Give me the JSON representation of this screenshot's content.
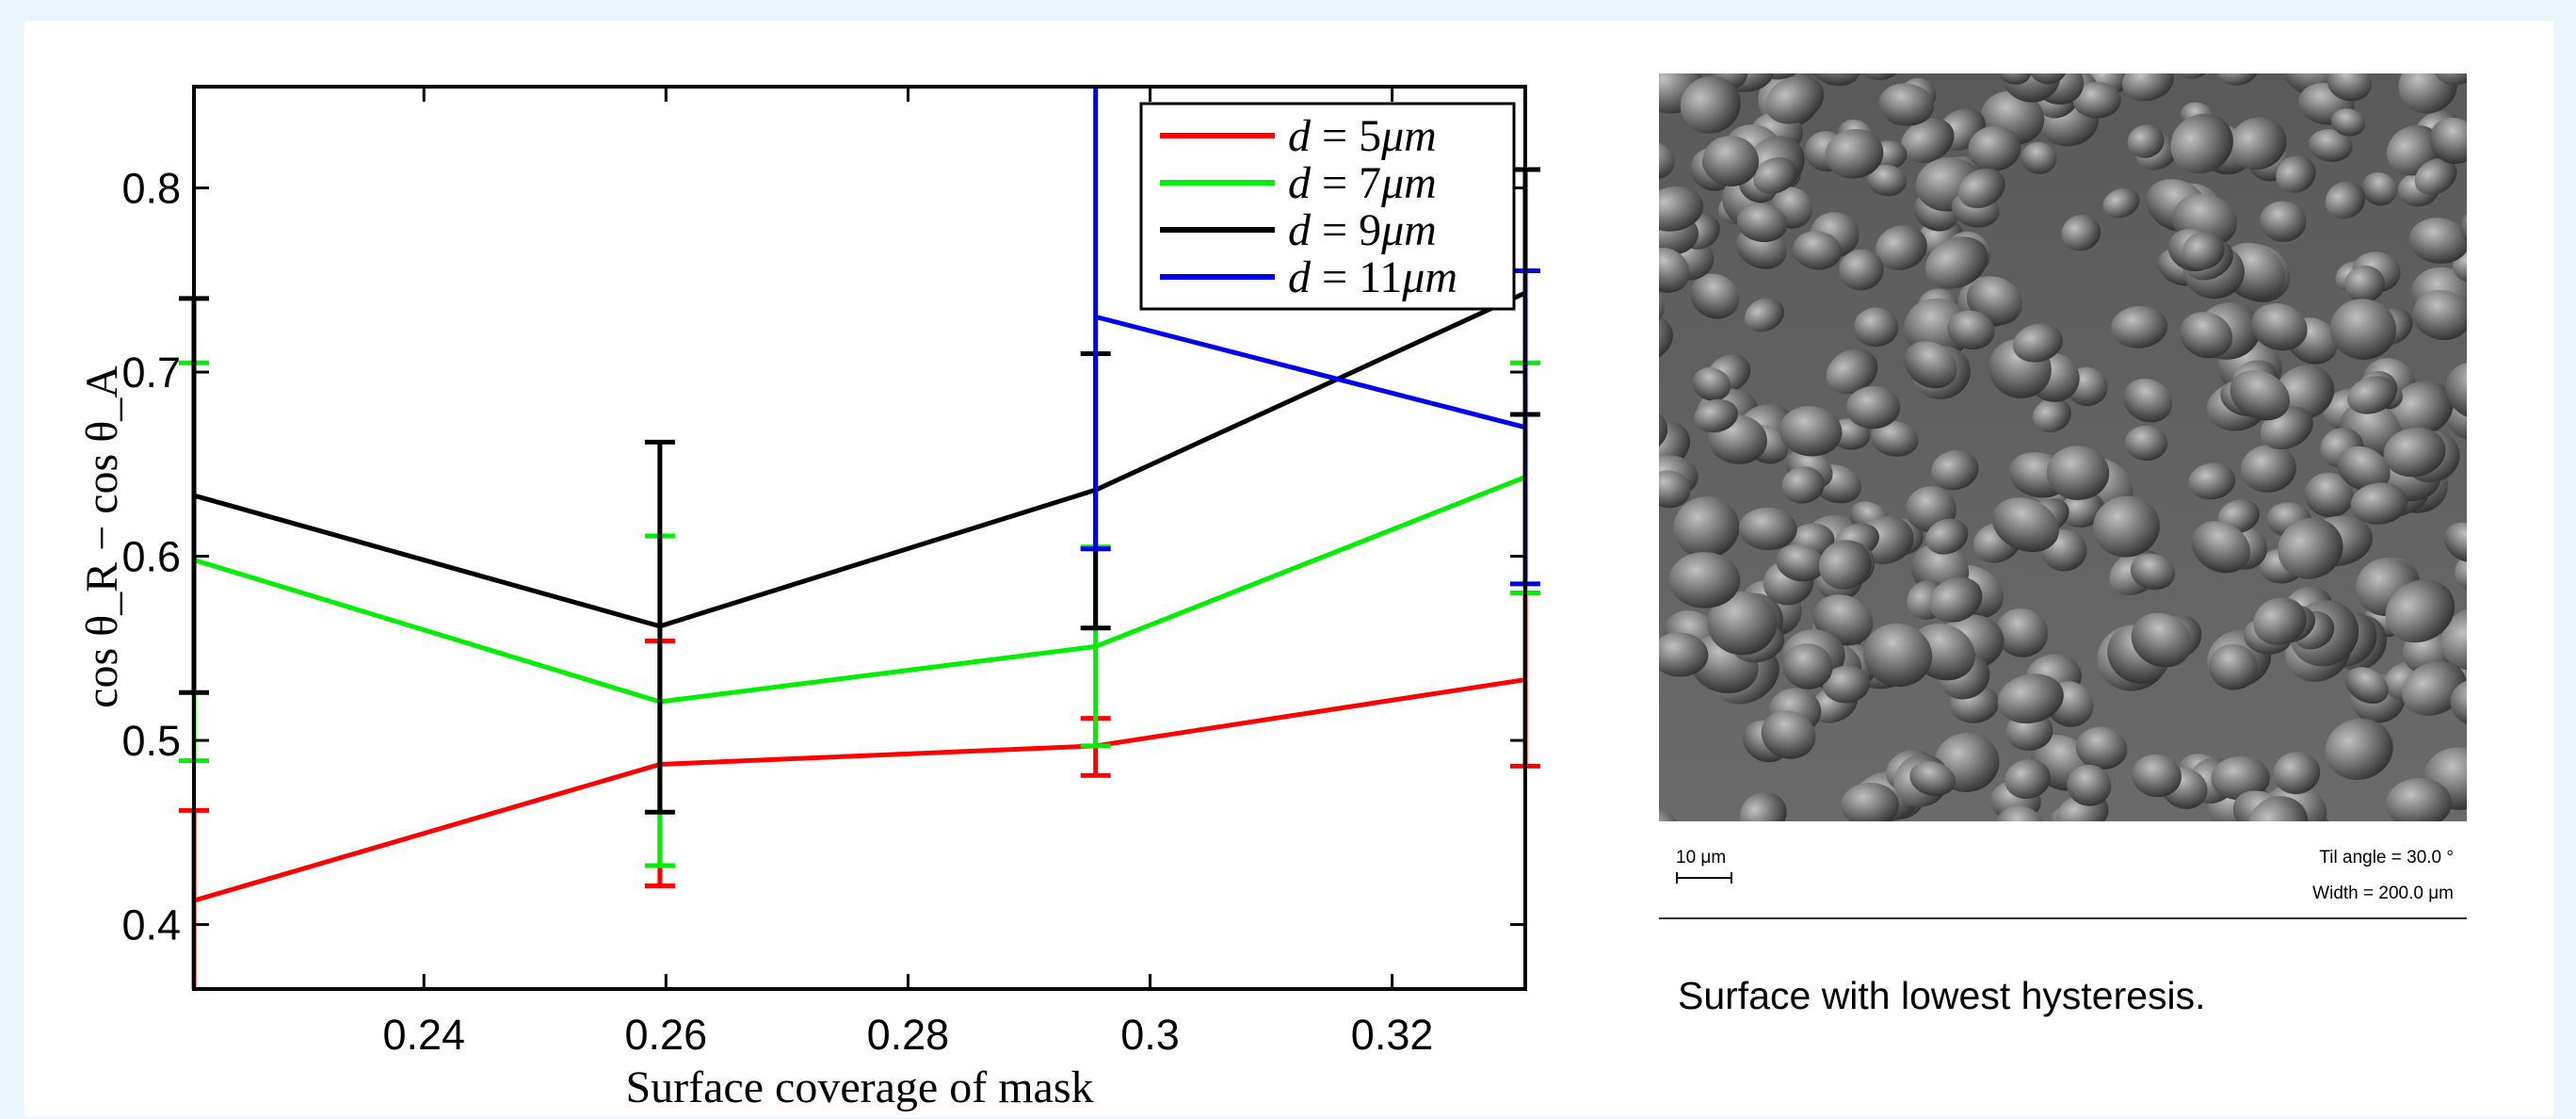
{
  "chart_data": {
    "type": "line",
    "xlabel": "Surface coverage of mask",
    "ylabel": "cos θ_R − cos θ_A",
    "xlim": [
      0.221,
      0.331
    ],
    "ylim": [
      0.365,
      0.855
    ],
    "xticks": [
      0.24,
      0.26,
      0.28,
      0.3,
      0.32
    ],
    "xtick_labels": [
      "0.24",
      "0.26",
      "0.28",
      "0.3",
      "0.32"
    ],
    "yticks": [
      0.4,
      0.5,
      0.6,
      0.7,
      0.8
    ],
    "ytick_labels": [
      "0.4",
      "0.5",
      "0.6",
      "0.7",
      "0.8"
    ],
    "grid": false,
    "legend_position": "top-right",
    "x": [
      0.221,
      0.2595,
      0.2955,
      0.331
    ],
    "series": [
      {
        "name": "d = 5μm",
        "label_parts": [
          "d",
          " = 5",
          "μm"
        ],
        "color": "#ff0000",
        "values": [
          0.413,
          0.487,
          0.497,
          0.533
        ],
        "err_low": [
          0.365,
          0.421,
          0.481,
          0.486
        ],
        "err_high": [
          0.462,
          0.554,
          0.512,
          0.58
        ]
      },
      {
        "name": "d = 7μm",
        "label_parts": [
          "d",
          " = 7",
          "μm"
        ],
        "color": "#00ee00",
        "values": [
          0.598,
          0.521,
          0.551,
          0.643
        ],
        "err_low": [
          0.489,
          0.432,
          0.497,
          0.58
        ],
        "err_high": [
          0.705,
          0.611,
          0.605,
          0.705
        ]
      },
      {
        "name": "d = 9μm",
        "label_parts": [
          "d",
          " = 9",
          "μm"
        ],
        "color": "#000000",
        "values": [
          0.633,
          0.562,
          0.636,
          0.743
        ],
        "err_low": [
          0.526,
          0.461,
          0.561,
          0.677
        ],
        "err_high": [
          0.74,
          0.662,
          0.71,
          0.81
        ]
      },
      {
        "name": "d = 11μm",
        "label_parts": [
          "d",
          " = 11",
          "μm"
        ],
        "color": "#0000ee",
        "x": [
          0.2955,
          0.331
        ],
        "values": [
          0.73,
          0.67
        ],
        "err_low": [
          0.604,
          0.585
        ],
        "err_high": [
          0.855,
          0.755
        ]
      }
    ]
  },
  "image_panel": {
    "scale_label": "10 μm",
    "tilt_text": "Til angle = 30.0 °",
    "width_text": "Width = 200.0 μm",
    "caption": "Surface with lowest hysteresis."
  }
}
